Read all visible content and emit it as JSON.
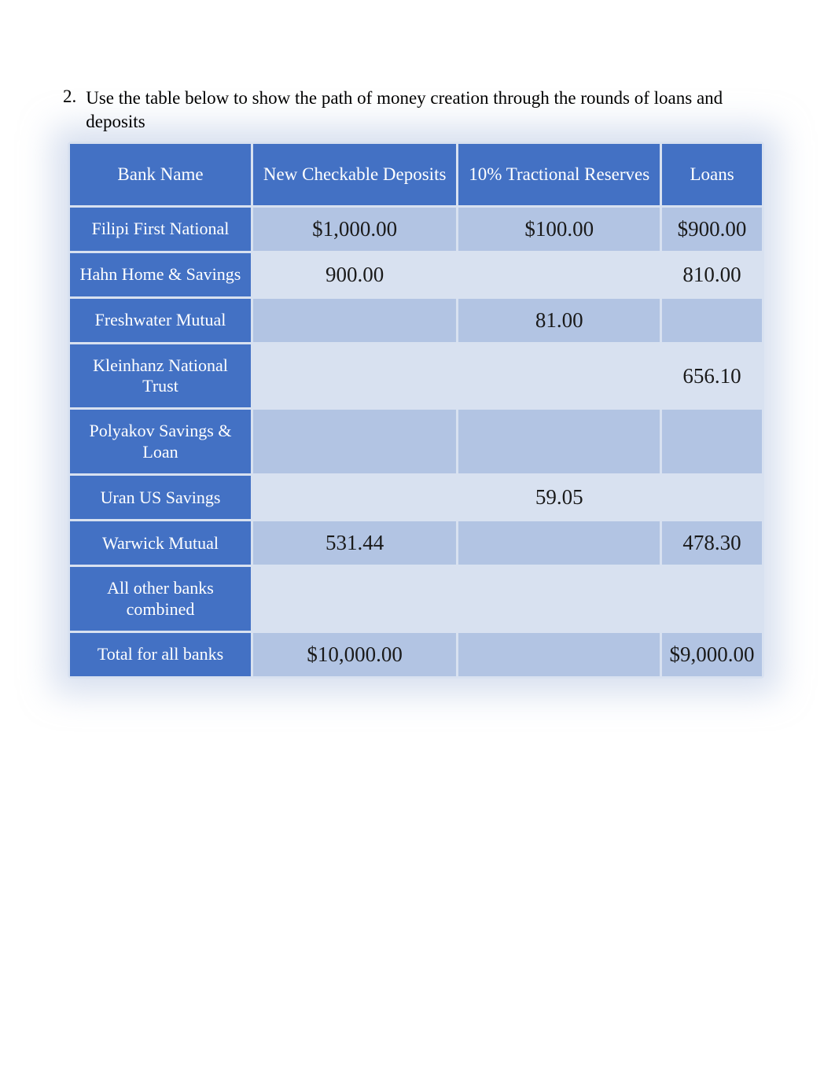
{
  "question": {
    "number": "2.",
    "text": "Use the table below to show the path of money creation through the rounds of loans and deposits"
  },
  "table": {
    "columns": [
      "Bank Name",
      "New Checkable Deposits",
      "10% Tractional Reserves",
      "Loans"
    ],
    "column_widths": [
      "230px",
      "auto",
      "auto",
      "auto"
    ],
    "header_bg": "#4371c4",
    "header_text_color": "#ffffff",
    "header_fontsize": 23,
    "bankname_bg": "#4371c4",
    "bankname_text_color": "#ffffff",
    "bankname_fontsize": 22,
    "data_fontsize": 27,
    "data_text_color": "#1a1a1a",
    "row_odd_bg": "#b2c4e3",
    "row_even_bg": "#d8e1f0",
    "rows": [
      {
        "bank": "Filipi First National",
        "deposits": "$1,000.00",
        "reserves": "$100.00",
        "loans": "$900.00"
      },
      {
        "bank": "Hahn Home & Savings",
        "deposits": "900.00",
        "reserves": "",
        "loans": "810.00"
      },
      {
        "bank": "Freshwater Mutual",
        "deposits": "",
        "reserves": "81.00",
        "loans": ""
      },
      {
        "bank": "Kleinhanz National Trust",
        "deposits": "",
        "reserves": "",
        "loans": "656.10"
      },
      {
        "bank": "Polyakov Savings & Loan",
        "deposits": "",
        "reserves": "",
        "loans": ""
      },
      {
        "bank": "Uran US Savings",
        "deposits": "",
        "reserves": "59.05",
        "loans": ""
      },
      {
        "bank": "Warwick Mutual",
        "deposits": "531.44",
        "reserves": "",
        "loans": "478.30"
      },
      {
        "bank": "All other banks combined",
        "deposits": "",
        "reserves": "",
        "loans": ""
      },
      {
        "bank": "Total for all banks",
        "deposits": "$10,000.00",
        "reserves": "",
        "loans": "$9,000.00"
      }
    ]
  }
}
